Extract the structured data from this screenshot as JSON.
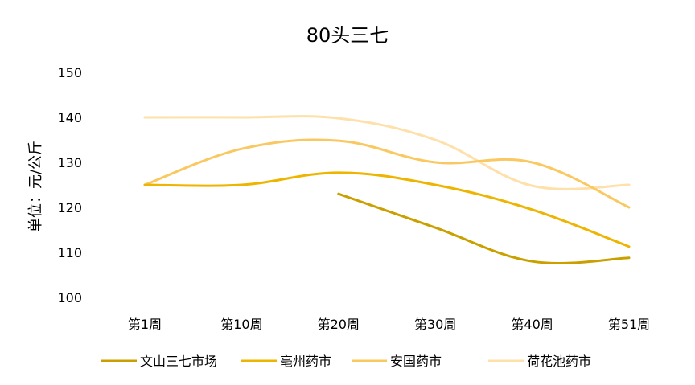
{
  "chart_data": {
    "type": "line",
    "title": "80头三七",
    "xlabel": "",
    "ylabel": "单位：元/公斤",
    "categories": [
      "第1周",
      "第10周",
      "第20周",
      "第30周",
      "第40周",
      "第51周"
    ],
    "ylim": [
      100,
      150
    ],
    "yticks": [
      100,
      110,
      120,
      130,
      140,
      150
    ],
    "grid": false,
    "legend_position": "bottom",
    "smooth": true,
    "series": [
      {
        "name": "文山三七市场",
        "color": "#C9A000",
        "values": [
          null,
          null,
          123,
          115.5,
          108,
          108.8
        ]
      },
      {
        "name": "亳州药市",
        "color": "#EDB500",
        "values": [
          125,
          125,
          127.7,
          125,
          119.5,
          111.3
        ]
      },
      {
        "name": "安国药市",
        "color": "#FAC860",
        "values": [
          125,
          133,
          134.8,
          130,
          130,
          120
        ]
      },
      {
        "name": "荷花池药市",
        "color": "#FDE0AA",
        "values": [
          140,
          140,
          139.8,
          135,
          124.8,
          125
        ]
      }
    ]
  }
}
